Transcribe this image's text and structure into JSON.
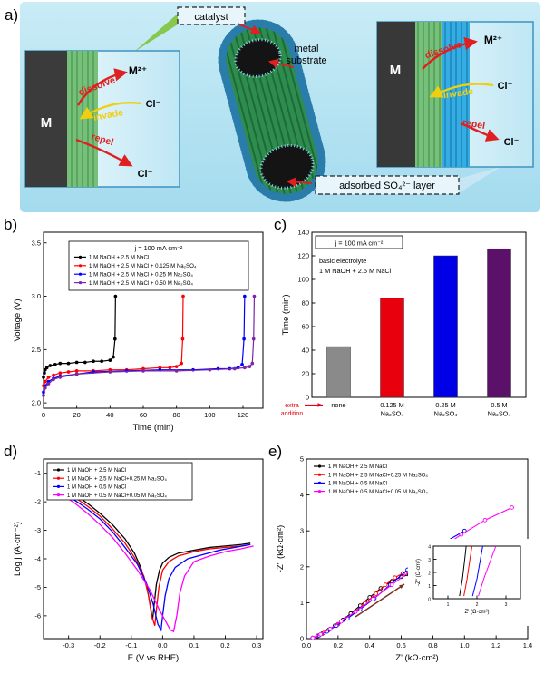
{
  "figure": {
    "panel_labels": {
      "a": "a)",
      "b": "b)",
      "c": "c)",
      "d": "d)",
      "e": "e)"
    }
  },
  "diagram": {
    "catalyst": "catalyst",
    "metal_substrate_line1": "metal",
    "metal_substrate_line2": "substrate",
    "adsorbed_layer": "adsorbed SO₄²⁻ layer",
    "left_inset": {
      "metal": "M",
      "metal_ion": "M²⁺",
      "dissolve": "dissolve",
      "invade": "invade",
      "repel": "repel",
      "chloride_invade": "Cl⁻",
      "chloride_repel": "Cl⁻"
    },
    "right_inset": {
      "metal": "M",
      "metal_ion": "M²⁺",
      "dissolve": "dissolve",
      "invade": "invade",
      "repel": "repel",
      "chloride_invade": "Cl⁻",
      "chloride_repel": "Cl⁻"
    }
  },
  "chart_data": [
    {
      "id": "b",
      "type": "line",
      "annotation": "j = 100 mA cm⁻²",
      "xlabel": "Time (min)",
      "ylabel": "Voltage (V)",
      "xlim": [
        0,
        132
      ],
      "ylim": [
        1.95,
        3.6
      ],
      "xticks": [
        "0",
        "20",
        "40",
        "60",
        "80",
        "100",
        "120"
      ],
      "yticks": [
        "2.0",
        "2.5",
        "3.0",
        "3.5"
      ],
      "legend_position": "top-inside-box",
      "series": [
        {
          "name": "1 M NaOH + 2.5 M NaCl",
          "color": "#000000",
          "x": [
            0,
            0.5,
            1,
            2,
            4,
            7,
            10,
            15,
            20,
            25,
            30,
            35,
            40,
            42,
            43,
            43.3
          ],
          "y": [
            2.24,
            2.28,
            2.31,
            2.33,
            2.35,
            2.36,
            2.37,
            2.37,
            2.38,
            2.38,
            2.39,
            2.39,
            2.4,
            2.43,
            2.6,
            3.0
          ]
        },
        {
          "name": "1 M NaOH + 2.5 M NaCl + 0.125 M Na₂SO₄",
          "color": "#ff0000",
          "x": [
            0,
            1,
            3,
            6,
            10,
            15,
            20,
            30,
            40,
            50,
            60,
            70,
            76,
            80,
            83,
            83.7,
            84
          ],
          "y": [
            2.16,
            2.2,
            2.24,
            2.26,
            2.28,
            2.29,
            2.3,
            2.3,
            2.31,
            2.31,
            2.32,
            2.33,
            2.33,
            2.34,
            2.37,
            2.6,
            3.0
          ]
        },
        {
          "name": "1 M NaOH + 2.5 M NaCl + 0.25 M Na₂SO₄",
          "color": "#0000ff",
          "x": [
            0,
            1,
            3,
            6,
            10,
            20,
            30,
            50,
            70,
            90,
            105,
            112,
            117,
            119.5,
            120.6,
            121
          ],
          "y": [
            2.1,
            2.16,
            2.2,
            2.23,
            2.25,
            2.27,
            2.29,
            2.3,
            2.31,
            2.31,
            2.32,
            2.32,
            2.33,
            2.36,
            2.6,
            3.0
          ]
        },
        {
          "name": "1 M NaOH + 2.5 M NaCl + 0.50 M Na₂SO₄",
          "color": "#7d26a6",
          "x": [
            0,
            1,
            3,
            6,
            10,
            20,
            40,
            60,
            80,
            100,
            115,
            121,
            124,
            125.6,
            126.4,
            126.8
          ],
          "y": [
            2.07,
            2.14,
            2.18,
            2.22,
            2.24,
            2.27,
            2.29,
            2.3,
            2.3,
            2.31,
            2.32,
            2.33,
            2.34,
            2.37,
            2.6,
            3.0
          ]
        }
      ]
    },
    {
      "id": "c",
      "type": "bar",
      "annotation_box": "j = 100 mA cm⁻²",
      "annotation_lines": [
        "basic electrolyte",
        "1 M NaOH + 2.5 M NaCl"
      ],
      "ylabel": "Time (min)",
      "ylim": [
        0,
        140
      ],
      "yticks": [
        "0",
        "20",
        "40",
        "60",
        "80",
        "100",
        "120",
        "140"
      ],
      "xlabel_note": [
        "extra",
        "addition"
      ],
      "label_color": "#e30613",
      "categories": [
        [
          "none"
        ],
        [
          "0.125 M",
          "Na₂SO₄"
        ],
        [
          "0.25 M",
          "Na₂SO₄"
        ],
        [
          "0.5 M",
          "Na₂SO₄"
        ]
      ],
      "values": [
        43,
        84,
        120,
        126
      ],
      "colors": [
        "#8a8a8a",
        "#e8000d",
        "#0000e6",
        "#5b1069"
      ]
    },
    {
      "id": "d",
      "type": "line",
      "xlabel": "E (V vs RHE)",
      "ylabel": "Log j (A·cm⁻²)",
      "xlim": [
        -0.38,
        0.32
      ],
      "ylim": [
        -6.8,
        -0.5
      ],
      "xticks": [
        "-0.3",
        "-0.2",
        "-0.1",
        "0.0",
        "0.1",
        "0.2",
        "0.3"
      ],
      "yticks": [
        "-6",
        "-5",
        "-4",
        "-3",
        "-2",
        "-1"
      ],
      "legend_position": "top-left-box",
      "series": [
        {
          "name": "1 M NaOH + 2.5 M NaCl",
          "color": "#000000",
          "x": [
            -0.35,
            -0.32,
            -0.28,
            -0.24,
            -0.2,
            -0.16,
            -0.12,
            -0.09,
            -0.07,
            -0.05,
            -0.04,
            -0.032,
            -0.027,
            -0.02,
            -0.01,
            0,
            0.02,
            0.05,
            0.1,
            0.15,
            0.2,
            0.25,
            0.28
          ],
          "y": [
            -1.3,
            -1.5,
            -1.75,
            -2.05,
            -2.4,
            -2.8,
            -3.3,
            -3.8,
            -4.3,
            -5.0,
            -5.6,
            -6.15,
            -5.6,
            -4.9,
            -4.4,
            -4.15,
            -3.95,
            -3.8,
            -3.7,
            -3.6,
            -3.55,
            -3.5,
            -3.45
          ]
        },
        {
          "name": "1 M NaOH + 2.5 M NaCl+0.25 M Na₂SO₄",
          "color": "#ff0000",
          "x": [
            -0.35,
            -0.32,
            -0.28,
            -0.24,
            -0.2,
            -0.16,
            -0.12,
            -0.09,
            -0.06,
            -0.045,
            -0.035,
            -0.025,
            -0.02,
            -0.012,
            0,
            0.02,
            0.05,
            0.1,
            0.15,
            0.2,
            0.25,
            0.28
          ],
          "y": [
            -1.4,
            -1.6,
            -1.85,
            -2.15,
            -2.5,
            -2.95,
            -3.45,
            -3.95,
            -4.6,
            -5.3,
            -6.0,
            -6.35,
            -5.8,
            -5.0,
            -4.4,
            -4.1,
            -3.9,
            -3.75,
            -3.65,
            -3.6,
            -3.55,
            -3.5
          ]
        },
        {
          "name": "1 M NaOH + 0.5 M NaCl",
          "color": "#0000ff",
          "x": [
            -0.35,
            -0.32,
            -0.28,
            -0.24,
            -0.2,
            -0.16,
            -0.12,
            -0.08,
            -0.05,
            -0.03,
            -0.015,
            -0.005,
            0,
            0.008,
            0.02,
            0.04,
            0.08,
            0.13,
            0.18,
            0.23,
            0.28
          ],
          "y": [
            -1.45,
            -1.65,
            -1.95,
            -2.25,
            -2.6,
            -3.05,
            -3.6,
            -4.2,
            -4.9,
            -5.6,
            -6.3,
            -6.5,
            -6.0,
            -5.3,
            -4.7,
            -4.3,
            -4.0,
            -3.85,
            -3.7,
            -3.6,
            -3.5
          ]
        },
        {
          "name": "1 M NaOH + 0.5 M NaCl+0.05 M Na₂SO₄",
          "color": "#ff00ff",
          "x": [
            -0.35,
            -0.32,
            -0.28,
            -0.24,
            -0.2,
            -0.16,
            -0.12,
            -0.08,
            -0.04,
            -0.01,
            0.01,
            0.025,
            0.035,
            0.045,
            0.055,
            0.07,
            0.1,
            0.15,
            0.2,
            0.25,
            0.29
          ],
          "y": [
            -1.55,
            -1.75,
            -2.05,
            -2.4,
            -2.8,
            -3.25,
            -3.8,
            -4.4,
            -5.1,
            -5.8,
            -6.2,
            -6.5,
            -6.55,
            -6.0,
            -5.2,
            -4.6,
            -4.1,
            -3.9,
            -3.75,
            -3.65,
            -3.55
          ]
        }
      ]
    },
    {
      "id": "e",
      "type": "scatter-line",
      "xlabel": "Z' (kΩ·cm²)",
      "ylabel": "-Z'' (kΩ·cm²)",
      "xlim": [
        0,
        1.4
      ],
      "ylim": [
        0,
        5
      ],
      "xticks": [
        "0.0",
        "0.2",
        "0.4",
        "0.6",
        "0.8",
        "1.0",
        "1.2",
        "1.4"
      ],
      "yticks": [
        "0",
        "1",
        "2",
        "3",
        "4",
        "5"
      ],
      "arrow_color": "#7b3020",
      "series": [
        {
          "name": "1 M NaOH + 2.5 M NaCl",
          "color": "#000000",
          "x": [
            0.04,
            0.07,
            0.1,
            0.14,
            0.18,
            0.23,
            0.28,
            0.34,
            0.4,
            0.47,
            0.54,
            0.6,
            0.65
          ],
          "y": [
            0.02,
            0.07,
            0.14,
            0.24,
            0.36,
            0.52,
            0.7,
            0.92,
            1.15,
            1.4,
            1.6,
            1.72,
            1.78
          ]
        },
        {
          "name": "1 M NaOH + 2.5 M NaCl+0.25 M Na₂SO₄",
          "color": "#ff0000",
          "x": [
            0.04,
            0.07,
            0.11,
            0.15,
            0.2,
            0.25,
            0.31,
            0.37,
            0.44,
            0.5,
            0.56,
            0.61,
            0.64
          ],
          "y": [
            0.02,
            0.08,
            0.16,
            0.27,
            0.4,
            0.56,
            0.76,
            0.98,
            1.25,
            1.5,
            1.7,
            1.82,
            1.88
          ]
        },
        {
          "name": "1 M NaOH + 0.5 M NaCl",
          "color": "#0000ff",
          "x": [
            0.04,
            0.08,
            0.13,
            0.19,
            0.26,
            0.34,
            0.43,
            0.53,
            0.64,
            0.76,
            0.88,
            1.0
          ],
          "y": [
            0.02,
            0.09,
            0.2,
            0.36,
            0.56,
            0.82,
            1.12,
            1.5,
            1.92,
            2.35,
            2.7,
            3.0
          ]
        },
        {
          "name": "1 M NaOH + 0.5 M NaCl+0.05 M Na₂SO₄",
          "color": "#ff00ff",
          "x": [
            0.04,
            0.09,
            0.15,
            0.22,
            0.31,
            0.42,
            0.54,
            0.68,
            0.83,
            0.98,
            1.13,
            1.3
          ],
          "y": [
            0.02,
            0.12,
            0.27,
            0.48,
            0.75,
            1.1,
            1.5,
            1.95,
            2.45,
            2.9,
            3.3,
            3.65
          ]
        }
      ],
      "inset": {
        "xlabel": "Z' (Ω·cm²)",
        "ylabel": "-Z'' (Ω·cm²)",
        "xlim": [
          0.5,
          3.5
        ],
        "ylim": [
          0,
          4
        ],
        "xticks": [
          "1",
          "2",
          "3"
        ],
        "yticks": [
          "0",
          "1",
          "2",
          "3",
          "4"
        ],
        "series": [
          {
            "name": "1 M NaOH + 2.5 M NaCl",
            "color": "#000000",
            "x": [
              1.4,
              1.5,
              1.58,
              1.63
            ],
            "y": [
              0.2,
              1.5,
              3.0,
              4.0
            ]
          },
          {
            "name": "1 M NaOH + 2.5 M NaCl+0.25 M Na₂SO₄",
            "color": "#ff0000",
            "x": [
              1.55,
              1.66,
              1.76,
              1.83
            ],
            "y": [
              0.2,
              1.5,
              3.0,
              4.0
            ]
          },
          {
            "name": "1 M NaOH + 0.5 M NaCl",
            "color": "#0000ff",
            "x": [
              1.85,
              2.0,
              2.12,
              2.2
            ],
            "y": [
              0.2,
              1.5,
              3.0,
              4.0
            ]
          },
          {
            "name": "1 M NaOH + 0.5 M NaCl+0.05 M Na₂SO₄",
            "color": "#ff00ff",
            "x": [
              2.05,
              2.25,
              2.5,
              2.65
            ],
            "y": [
              0.2,
              1.6,
              3.1,
              4.0
            ]
          }
        ]
      }
    }
  ]
}
